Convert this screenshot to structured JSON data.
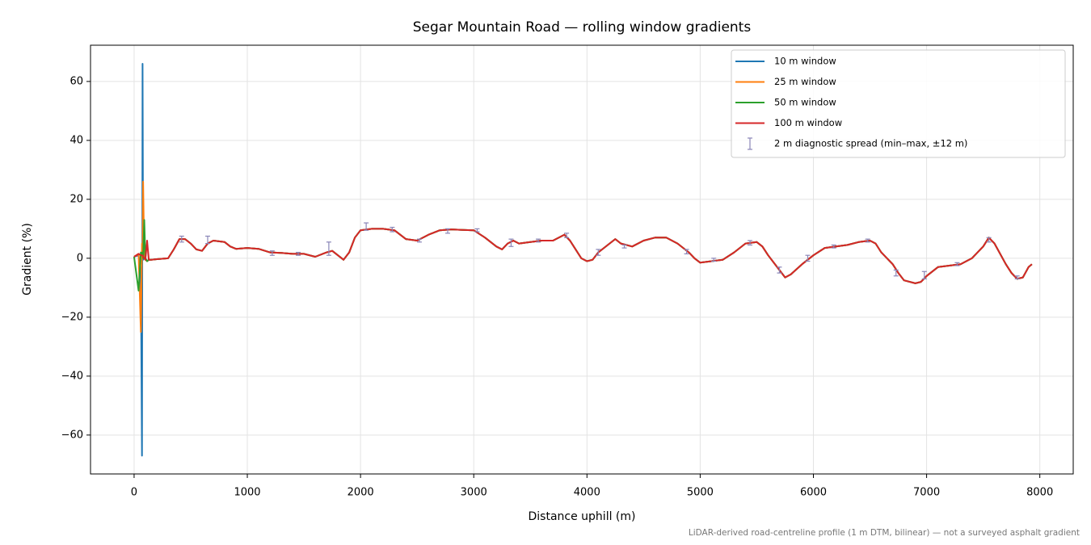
{
  "chart_data": {
    "type": "line",
    "title": "Segar Mountain Road — rolling window gradients",
    "xlabel": "Distance uphill (m)",
    "ylabel": "Gradient (%)",
    "footnote": "LiDAR-derived road-centreline profile (1 m DTM, bilinear) — not a surveyed asphalt gradient",
    "grid": true,
    "legend": "upper right",
    "xlim": [
      -385,
      8295
    ],
    "ylim": [
      -73.2,
      72.3
    ],
    "xticks": [
      0,
      1000,
      2000,
      3000,
      4000,
      5000,
      6000,
      7000,
      8000
    ],
    "yticks": [
      {
        "value": -60,
        "label": "−60"
      },
      {
        "value": -40,
        "label": "−40"
      },
      {
        "value": -20,
        "label": "−20"
      },
      0,
      20,
      40,
      60
    ],
    "x": [
      0,
      40,
      60,
      70,
      75,
      80,
      90,
      100,
      115,
      130,
      150,
      200,
      300,
      350,
      400,
      450,
      500,
      550,
      600,
      650,
      700,
      800,
      850,
      900,
      1000,
      1100,
      1200,
      1300,
      1400,
      1500,
      1600,
      1700,
      1750,
      1800,
      1850,
      1900,
      1950,
      2000,
      2100,
      2200,
      2300,
      2400,
      2500,
      2600,
      2700,
      2800,
      2900,
      3000,
      3100,
      3200,
      3250,
      3300,
      3350,
      3400,
      3500,
      3600,
      3700,
      3800,
      3850,
      3900,
      3950,
      4000,
      4050,
      4100,
      4200,
      4250,
      4300,
      4400,
      4500,
      4600,
      4700,
      4800,
      4900,
      4950,
      5000,
      5100,
      5200,
      5300,
      5400,
      5500,
      5550,
      5600,
      5700,
      5750,
      5800,
      5900,
      6000,
      6100,
      6200,
      6300,
      6400,
      6500,
      6550,
      6600,
      6700,
      6750,
      6800,
      6900,
      6950,
      7000,
      7100,
      7200,
      7300,
      7400,
      7500,
      7550,
      7600,
      7700,
      7750,
      7800,
      7850,
      7900,
      7930
    ],
    "series": [
      {
        "name": "10 m window",
        "color": "#1f77b4",
        "values": [
          0.5,
          1,
          -5,
          -67,
          66,
          -0.5,
          0.5,
          0,
          -1,
          -0.5,
          -0.5,
          -0.3,
          0,
          3,
          6.5,
          6.5,
          5,
          3,
          2.5,
          5,
          6,
          5.5,
          4,
          3.2,
          3.5,
          3.2,
          2,
          1.8,
          1.5,
          1.5,
          0.5,
          2,
          2.5,
          1,
          -0.5,
          2,
          7,
          9.5,
          10,
          10,
          9.5,
          6.5,
          6,
          8,
          9.5,
          9.8,
          9.6,
          9.5,
          7,
          4,
          3,
          5,
          6,
          5,
          5.5,
          6,
          6,
          8,
          6,
          3,
          0,
          -1,
          -0.5,
          2,
          5,
          6.5,
          5,
          4,
          6,
          7,
          7,
          5,
          2,
          0,
          -1.5,
          -1,
          -0.5,
          2,
          5,
          5.5,
          4,
          1,
          -4,
          -6.5,
          -5.5,
          -2,
          1,
          3.5,
          4,
          4.5,
          5.5,
          6,
          5,
          2,
          -2,
          -5,
          -7.5,
          -8.5,
          -8,
          -6,
          -3,
          -2.5,
          -2,
          0,
          4,
          7,
          5,
          -2,
          -5,
          -7,
          -6.5,
          -3,
          -2
        ]
      },
      {
        "name": "25 m window",
        "color": "#ff7f0e",
        "values": [
          0.5,
          1.5,
          -25,
          5,
          2,
          26,
          0,
          -0.5,
          -1,
          -0.5,
          -0.5,
          -0.3,
          0,
          3,
          6.5,
          6.5,
          5,
          3,
          2.5,
          5,
          6,
          5.5,
          4,
          3.2,
          3.5,
          3.2,
          2,
          1.8,
          1.5,
          1.5,
          0.5,
          2,
          2.5,
          1,
          -0.5,
          2,
          7,
          9.5,
          10,
          10,
          9.5,
          6.5,
          6,
          8,
          9.5,
          9.8,
          9.6,
          9.5,
          7,
          4,
          3,
          5,
          6,
          5,
          5.5,
          6,
          6,
          8,
          6,
          3,
          0,
          -1,
          -0.5,
          2,
          5,
          6.5,
          5,
          4,
          6,
          7,
          7,
          5,
          2,
          0,
          -1.5,
          -1,
          -0.5,
          2,
          5,
          5.5,
          4,
          1,
          -4,
          -6.5,
          -5.5,
          -2,
          1,
          3.5,
          4,
          4.5,
          5.5,
          6,
          5,
          2,
          -2,
          -5,
          -7.5,
          -8.5,
          -8,
          -6,
          -3,
          -2.5,
          -2,
          0,
          4,
          7,
          5,
          -2,
          -5,
          -7,
          -6.5,
          -3,
          -2
        ]
      },
      {
        "name": "50 m window",
        "color": "#2ca02c",
        "values": [
          0.5,
          -11,
          2,
          1,
          2,
          0,
          13,
          0,
          -1,
          -0.5,
          -0.5,
          -0.3,
          0,
          3,
          6.5,
          6.5,
          5,
          3,
          2.5,
          5,
          6,
          5.5,
          4,
          3.2,
          3.5,
          3.2,
          2,
          1.8,
          1.5,
          1.5,
          0.5,
          2,
          2.5,
          1,
          -0.5,
          2,
          7,
          9.5,
          10,
          10,
          9.5,
          6.5,
          6,
          8,
          9.5,
          9.8,
          9.6,
          9.5,
          7,
          4,
          3,
          5,
          6,
          5,
          5.5,
          6,
          6,
          8,
          6,
          3,
          0,
          -1,
          -0.5,
          2,
          5,
          6.5,
          5,
          4,
          6,
          7,
          7,
          5,
          2,
          0,
          -1.5,
          -1,
          -0.5,
          2,
          5,
          5.5,
          4,
          1,
          -4,
          -6.5,
          -5.5,
          -2,
          1,
          3.5,
          4,
          4.5,
          5.5,
          6,
          5,
          2,
          -2,
          -5,
          -7.5,
          -8.5,
          -8,
          -6,
          -3,
          -2.5,
          -2,
          0,
          4,
          7,
          5,
          -2,
          -5,
          -7,
          -6.5,
          -3,
          -2
        ]
      },
      {
        "name": "100 m window",
        "color": "#d62728",
        "values": [
          0.5,
          1.5,
          1,
          1,
          1,
          0.5,
          0,
          -0.5,
          6,
          -0.5,
          -0.5,
          -0.3,
          0,
          3,
          6.5,
          6.5,
          5,
          3,
          2.5,
          5,
          6,
          5.5,
          4,
          3.2,
          3.5,
          3.2,
          2,
          1.8,
          1.5,
          1.5,
          0.5,
          2,
          2.5,
          1,
          -0.5,
          2,
          7,
          9.5,
          10,
          10,
          9.5,
          6.5,
          6,
          8,
          9.5,
          9.8,
          9.6,
          9.5,
          7,
          4,
          3,
          5,
          6,
          5,
          5.5,
          6,
          6,
          8,
          6,
          3,
          0,
          -1,
          -0.5,
          2,
          5,
          6.5,
          5,
          4,
          6,
          7,
          7,
          5,
          2,
          0,
          -1.5,
          -1,
          -0.5,
          2,
          5,
          5.5,
          4,
          1,
          -4,
          -6.5,
          -5.5,
          -2,
          1,
          3.5,
          4,
          4.5,
          5.5,
          6,
          5,
          2,
          -2,
          -5,
          -7.5,
          -8.5,
          -8,
          -6,
          -3,
          -2.5,
          -2,
          0,
          4,
          7,
          5,
          -2,
          -5,
          -7,
          -6.5,
          -3,
          -2
        ]
      }
    ],
    "spread": {
      "name": "2 m diagnostic spread (min–max, ±12 m)",
      "color": "#8a86b8",
      "x": [
        420,
        650,
        1220,
        1450,
        1720,
        2050,
        2280,
        2520,
        2770,
        3030,
        3330,
        3570,
        3820,
        4100,
        4330,
        4880,
        5120,
        5440,
        5700,
        5950,
        6180,
        6480,
        6730,
        6980,
        7270,
        7550,
        7800
      ],
      "low": [
        5.5,
        5,
        1,
        1,
        1,
        9.5,
        9,
        5.5,
        8.5,
        9,
        4,
        5.5,
        7,
        1,
        3.5,
        1.5,
        -1,
        4.5,
        -5,
        -1,
        3.5,
        5.5,
        -6,
        -7,
        -2.5,
        5.5,
        -7
      ],
      "high": [
        7.5,
        7.5,
        2.5,
        2,
        5.5,
        12,
        10.5,
        6.5,
        10,
        10,
        6.5,
        6.5,
        8.5,
        3,
        4.5,
        3,
        0,
        6,
        -3,
        1,
        4.5,
        6.5,
        -4,
        -4.5,
        -1.5,
        7,
        -6
      ]
    }
  }
}
